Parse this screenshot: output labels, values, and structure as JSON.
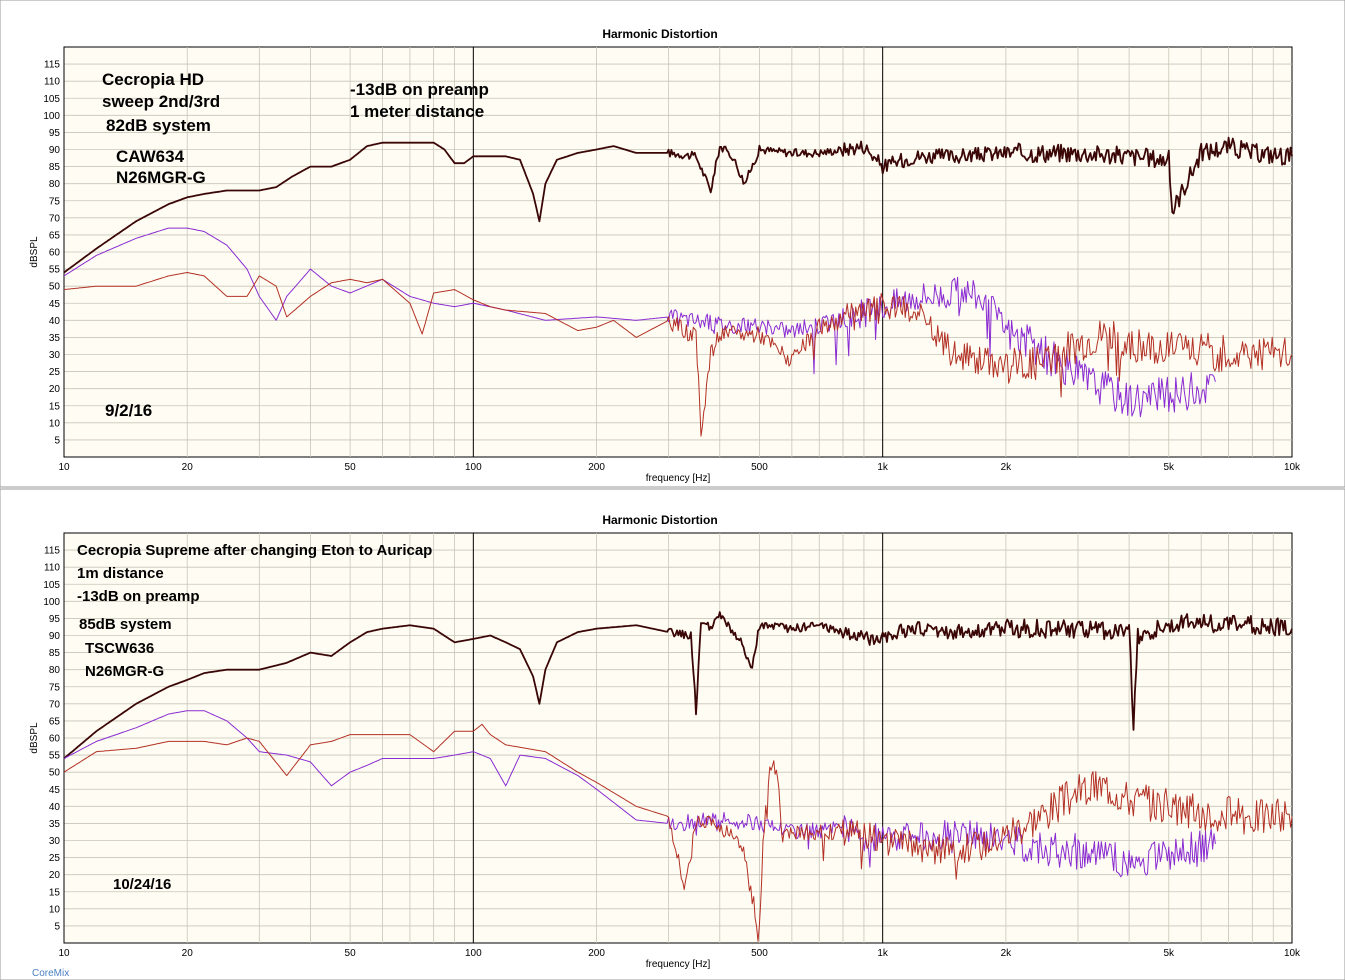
{
  "footer_text": "CoreMix",
  "chart_data": [
    {
      "type": "line",
      "title": "Harmonic Distortion",
      "xlabel": "frequency [Hz]",
      "ylabel": "dBSPL",
      "x_scale": "log",
      "xlim": [
        10,
        10000
      ],
      "ylim": [
        0,
        120
      ],
      "x_ticks": [
        10,
        20,
        50,
        100,
        200,
        500,
        1000,
        2000,
        5000,
        10000
      ],
      "x_tick_labels": [
        "10",
        "20",
        "50",
        "100",
        "200",
        "500",
        "1k",
        "2k",
        "5k",
        "10k"
      ],
      "y_ticks": [
        5,
        10,
        15,
        20,
        25,
        30,
        35,
        40,
        45,
        50,
        55,
        60,
        65,
        70,
        75,
        80,
        85,
        90,
        95,
        100,
        105,
        110,
        115
      ],
      "grid": true,
      "annotations": [
        "Cecropia HD",
        "sweep 2nd/3rd",
        "82dB system",
        "CAW634",
        "N26MGR-G",
        "-13dB on preamp",
        "1 meter distance",
        "9/2/16"
      ],
      "series": [
        {
          "color": "#3a0606",
          "x": [
            10,
            12,
            15,
            18,
            20,
            22,
            25,
            30,
            33,
            36,
            40,
            45,
            50,
            55,
            60,
            70,
            80,
            85,
            90,
            95,
            100,
            110,
            120,
            130,
            140,
            145,
            150,
            160,
            180,
            200,
            220,
            250,
            300,
            350,
            380,
            400,
            430,
            460,
            500,
            600,
            700,
            800,
            900,
            1000,
            1200,
            1500,
            2000,
            3000,
            4000,
            5000,
            5100,
            6000,
            7000,
            8000,
            10000
          ],
          "y": [
            54,
            61,
            69,
            74,
            76,
            77,
            78,
            78,
            79,
            82,
            85,
            85,
            87,
            91,
            92,
            92,
            92,
            90,
            86,
            86,
            88,
            88,
            88,
            87,
            77,
            69,
            80,
            87,
            89,
            90,
            91,
            89,
            89,
            88,
            78,
            91,
            88,
            80,
            90,
            89,
            89,
            90,
            91,
            85,
            88,
            88,
            89,
            89,
            88,
            87,
            72,
            89,
            91,
            89,
            88
          ]
        },
        {
          "color": "#8a2bd2",
          "x": [
            10,
            12,
            15,
            18,
            20,
            22,
            25,
            28,
            30,
            33,
            35,
            40,
            45,
            50,
            60,
            70,
            80,
            90,
            100,
            120,
            150,
            200,
            250,
            300,
            400,
            500,
            600,
            800,
            1000,
            1200,
            1500,
            1600,
            1800,
            2000,
            2500,
            3000,
            3500,
            4000,
            5000,
            6000,
            6500
          ],
          "y": [
            53,
            59,
            64,
            67,
            67,
            66,
            62,
            55,
            47,
            40,
            47,
            55,
            50,
            48,
            52,
            47,
            45,
            44,
            45,
            43,
            40,
            41,
            40,
            41,
            39,
            38,
            37,
            40,
            44,
            47,
            48,
            49,
            45,
            37,
            30,
            24,
            20,
            17,
            18,
            20,
            22
          ]
        },
        {
          "color": "#b33025",
          "x": [
            10,
            12,
            15,
            18,
            20,
            22,
            25,
            28,
            30,
            33,
            35,
            40,
            45,
            50,
            55,
            60,
            70,
            75,
            80,
            90,
            100,
            110,
            120,
            150,
            180,
            200,
            220,
            250,
            300,
            350,
            360,
            380,
            400,
            500,
            600,
            700,
            800,
            1000,
            1200,
            1500,
            2000,
            2500,
            3000,
            3500,
            4000,
            5000,
            6000,
            7000,
            8000,
            10000
          ],
          "y": [
            49,
            50,
            50,
            53,
            54,
            53,
            47,
            47,
            53,
            50,
            41,
            47,
            51,
            52,
            51,
            52,
            45,
            36,
            48,
            49,
            46,
            44,
            43,
            42,
            37,
            38,
            40,
            35,
            40,
            35,
            8,
            30,
            36,
            36,
            28,
            38,
            40,
            44,
            42,
            30,
            27,
            28,
            33,
            36,
            32,
            33,
            31,
            30,
            31,
            30
          ]
        }
      ]
    },
    {
      "type": "line",
      "title": "Harmonic Distortion",
      "xlabel": "frequency [Hz]",
      "ylabel": "dBSPL",
      "x_scale": "log",
      "xlim": [
        10,
        10000
      ],
      "ylim": [
        0,
        120
      ],
      "x_ticks": [
        10,
        20,
        50,
        100,
        200,
        500,
        1000,
        2000,
        5000,
        10000
      ],
      "x_tick_labels": [
        "10",
        "20",
        "50",
        "100",
        "200",
        "500",
        "1k",
        "2k",
        "5k",
        "10k"
      ],
      "y_ticks": [
        5,
        10,
        15,
        20,
        25,
        30,
        35,
        40,
        45,
        50,
        55,
        60,
        65,
        70,
        75,
        80,
        85,
        90,
        95,
        100,
        105,
        110,
        115
      ],
      "grid": true,
      "annotations": [
        "Cecropia Supreme after changing Eton to Auricap",
        "1m distance",
        "-13dB on preamp",
        "85dB system",
        "TSCW636",
        "N26MGR-G",
        "10/24/16"
      ],
      "series": [
        {
          "color": "#3a0606",
          "x": [
            10,
            12,
            15,
            18,
            20,
            22,
            25,
            30,
            35,
            40,
            45,
            50,
            55,
            60,
            70,
            80,
            90,
            100,
            110,
            120,
            130,
            140,
            145,
            150,
            160,
            180,
            200,
            250,
            300,
            340,
            350,
            360,
            380,
            400,
            450,
            480,
            500,
            600,
            700,
            800,
            900,
            1000,
            1200,
            1500,
            2000,
            3000,
            4000,
            4100,
            4200,
            5000,
            6000,
            7000,
            8000,
            10000
          ],
          "y": [
            54,
            62,
            70,
            75,
            77,
            79,
            80,
            80,
            82,
            85,
            84,
            88,
            91,
            92,
            93,
            92,
            88,
            89,
            90,
            88,
            86,
            78,
            70,
            80,
            88,
            91,
            92,
            93,
            91,
            90,
            68,
            94,
            92,
            96,
            88,
            80,
            93,
            92,
            93,
            91,
            89,
            90,
            92,
            91,
            92,
            92,
            91,
            64,
            90,
            93,
            94,
            93,
            93,
            92
          ]
        },
        {
          "color": "#8a2bd2",
          "x": [
            10,
            12,
            15,
            18,
            20,
            22,
            25,
            28,
            30,
            35,
            40,
            45,
            50,
            55,
            60,
            70,
            80,
            90,
            100,
            110,
            120,
            130,
            150,
            180,
            200,
            250,
            300,
            400,
            500,
            600,
            800,
            1000,
            1200,
            1500,
            2000,
            2500,
            3000,
            3500,
            4000,
            5000,
            6000,
            6500
          ],
          "y": [
            54,
            59,
            63,
            67,
            68,
            68,
            65,
            60,
            56,
            55,
            53,
            46,
            50,
            52,
            54,
            54,
            54,
            55,
            56,
            54,
            46,
            55,
            54,
            49,
            45,
            36,
            35,
            36,
            35,
            33,
            33,
            30,
            31,
            32,
            30,
            28,
            27,
            25,
            23,
            27,
            28,
            29
          ]
        },
        {
          "color": "#b33025",
          "x": [
            10,
            12,
            15,
            18,
            20,
            22,
            25,
            28,
            30,
            35,
            40,
            45,
            50,
            60,
            70,
            80,
            90,
            100,
            105,
            110,
            120,
            150,
            180,
            200,
            250,
            300,
            330,
            350,
            400,
            450,
            500,
            510,
            530,
            550,
            570,
            600,
            700,
            800,
            1000,
            1200,
            1500,
            1800,
            2000,
            2500,
            3000,
            3500,
            4000,
            5000,
            6000,
            7000,
            8000,
            10000
          ],
          "y": [
            50,
            56,
            57,
            59,
            59,
            59,
            58,
            60,
            59,
            49,
            58,
            59,
            61,
            61,
            61,
            56,
            62,
            62,
            64,
            61,
            58,
            56,
            50,
            47,
            40,
            37,
            16,
            36,
            34,
            30,
            3,
            30,
            50,
            52,
            30,
            33,
            32,
            33,
            30,
            28,
            27,
            29,
            32,
            38,
            44,
            46,
            42,
            40,
            38,
            38,
            37,
            37
          ]
        }
      ]
    }
  ],
  "panel1": {
    "title": "Harmonic Distortion",
    "xlabel": "frequency [Hz]",
    "ylabel": "dBSPL",
    "notes": [
      "Cecropia HD",
      "sweep 2nd/3rd",
      "82dB system",
      "CAW634",
      "N26MGR-G"
    ],
    "notes_right": [
      "-13dB on preamp",
      "1 meter distance"
    ],
    "date": "9/2/16"
  },
  "panel2": {
    "title": "Harmonic Distortion",
    "xlabel": "frequency [Hz]",
    "ylabel": "dBSPL",
    "notes": [
      "Cecropia Supreme after changing Eton to Auricap",
      "1m distance",
      "-13dB on preamp",
      "85dB system",
      "TSCW636",
      "N26MGR-G"
    ],
    "date": "10/24/16"
  }
}
